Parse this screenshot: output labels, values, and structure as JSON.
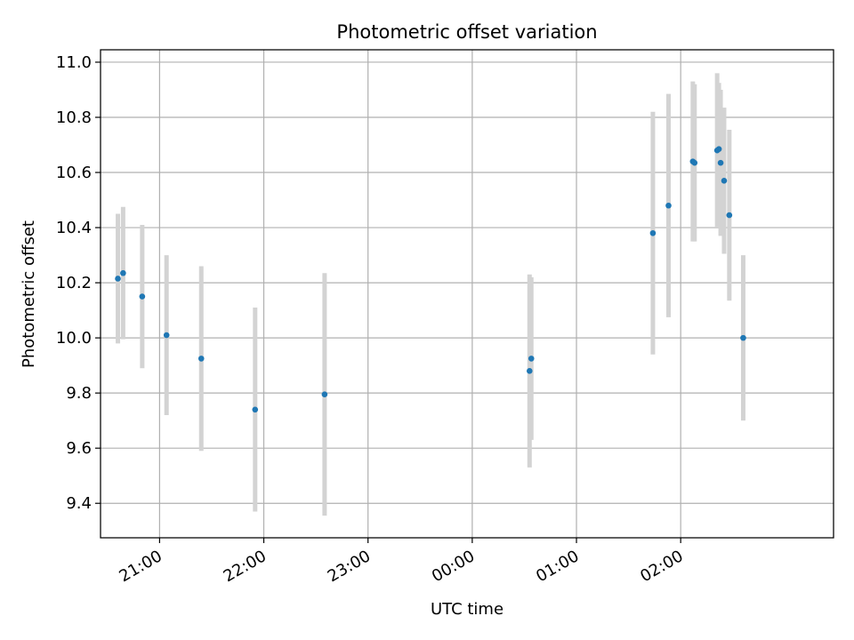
{
  "chart_data": {
    "type": "scatter",
    "title": "Photometric offset variation",
    "xlabel": "UTC time",
    "ylabel": "Photometric offset",
    "grid": true,
    "x_ticks": [
      "21:00",
      "22:00",
      "23:00",
      "00:00",
      "01:00",
      "02:00"
    ],
    "y_ticks": [
      "9.4",
      "9.6",
      "9.8",
      "10.0",
      "10.2",
      "10.4",
      "10.6",
      "10.8",
      "11.0"
    ],
    "xlim": [
      "20:26",
      "03:28"
    ],
    "ylim": [
      9.275,
      11.045
    ],
    "colors": {
      "point": "#1f77b4",
      "errorbar": "#d3d3d3",
      "grid": "#b0b0b0"
    },
    "points": [
      {
        "x": "20:36",
        "y": 10.215,
        "yerr": 0.235
      },
      {
        "x": "20:39",
        "y": 10.235,
        "yerr": 0.24
      },
      {
        "x": "20:50",
        "y": 10.15,
        "yerr": 0.26
      },
      {
        "x": "21:04",
        "y": 10.01,
        "yerr": 0.29
      },
      {
        "x": "21:24",
        "y": 9.925,
        "yerr": 0.335
      },
      {
        "x": "21:55",
        "y": 9.74,
        "yerr": 0.37
      },
      {
        "x": "22:35",
        "y": 9.795,
        "yerr": 0.44
      },
      {
        "x": "00:33",
        "y": 9.88,
        "yerr": 0.35
      },
      {
        "x": "00:34",
        "y": 9.925,
        "yerr": 0.295
      },
      {
        "x": "01:44",
        "y": 10.38,
        "yerr": 0.44
      },
      {
        "x": "01:53",
        "y": 10.48,
        "yerr": 0.405
      },
      {
        "x": "02:07",
        "y": 10.64,
        "yerr": 0.29
      },
      {
        "x": "02:08",
        "y": 10.635,
        "yerr": 0.285
      },
      {
        "x": "02:21",
        "y": 10.68,
        "yerr": 0.28
      },
      {
        "x": "02:22",
        "y": 10.685,
        "yerr": 0.24
      },
      {
        "x": "02:23",
        "y": 10.635,
        "yerr": 0.265
      },
      {
        "x": "02:25",
        "y": 10.57,
        "yerr": 0.265
      },
      {
        "x": "02:28",
        "y": 10.445,
        "yerr": 0.31
      },
      {
        "x": "02:36",
        "y": 10.0,
        "yerr": 0.3
      }
    ]
  }
}
